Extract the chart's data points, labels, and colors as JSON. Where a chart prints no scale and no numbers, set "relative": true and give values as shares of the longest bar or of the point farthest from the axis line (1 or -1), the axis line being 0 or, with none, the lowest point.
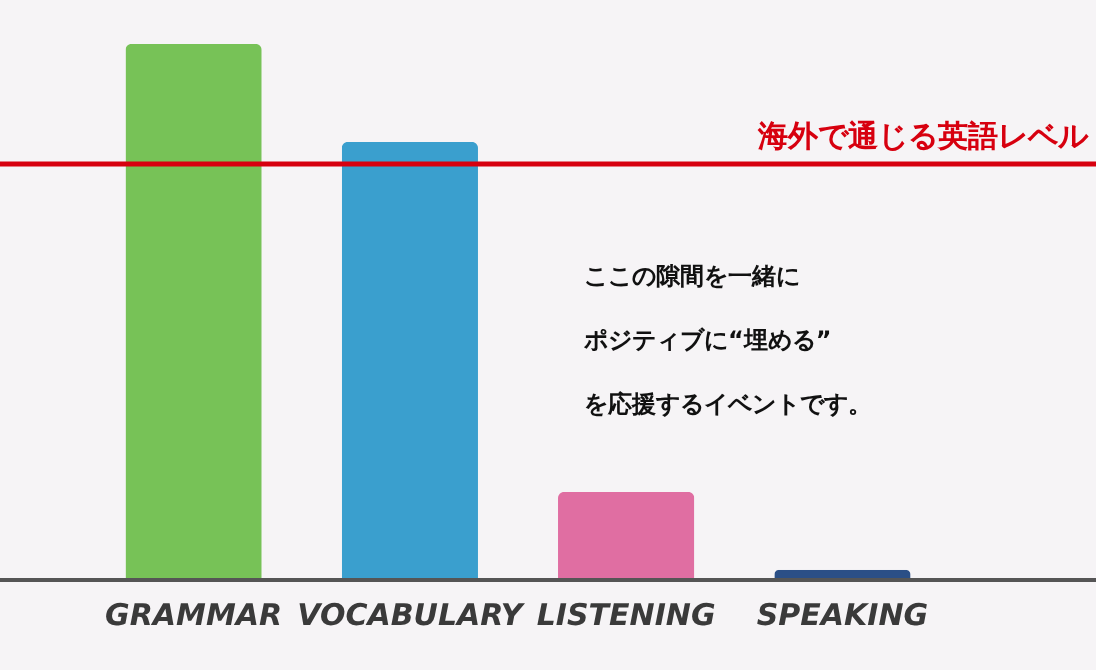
{
  "chart_data": {
    "type": "bar",
    "relative": true,
    "categories": [
      "GRAMMAR",
      "VOCABULARY",
      "LISTENING",
      "SPEAKING"
    ],
    "values": [
      1,
      0.817,
      0.164,
      0.019
    ],
    "colors": [
      "#77c257",
      "#3a9fce",
      "#e06ea2",
      "#2b4f86"
    ],
    "ref_lines": [
      {
        "axis": "y",
        "value": 0.776,
        "label": "海外で通じる英語レベル",
        "color": "#d7000f"
      }
    ],
    "annotations": [
      "ここの隙間を一緒に",
      "ポジティブに“埋める”",
      "を応援するイベントです。"
    ],
    "grid": false
  }
}
